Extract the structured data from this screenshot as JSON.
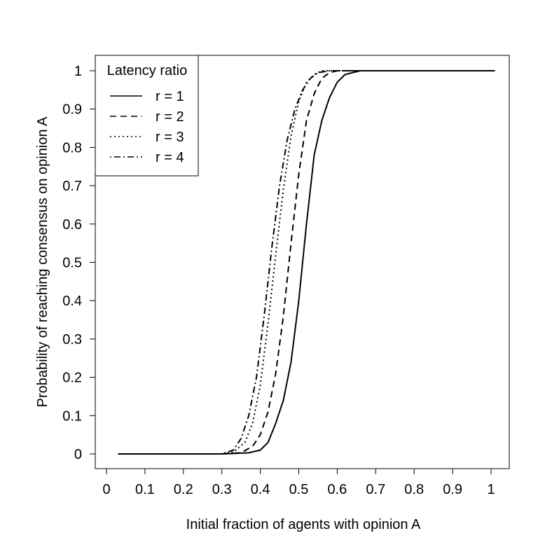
{
  "chart_data": {
    "type": "line",
    "title": "",
    "xlabel": "Initial fraction of agents with opinion A",
    "ylabel": "Probability of reaching consensus on opinion A",
    "xlim": [
      0,
      1
    ],
    "ylim": [
      0,
      1
    ],
    "xticks": [
      "0",
      "0.1",
      "0.2",
      "0.3",
      "0.4",
      "0.5",
      "0.6",
      "0.7",
      "0.8",
      "0.9",
      "1"
    ],
    "yticks": [
      "0",
      "0.1",
      "0.2",
      "0.3",
      "0.4",
      "0.5",
      "0.6",
      "0.7",
      "0.8",
      "0.9",
      "1"
    ],
    "grid": false,
    "legend": {
      "title": "Latency ratio",
      "position": "top-left"
    },
    "series": [
      {
        "name": "r = 1",
        "dash": "solid",
        "x": [
          0.03,
          0.3,
          0.37,
          0.4,
          0.42,
          0.44,
          0.46,
          0.48,
          0.5,
          0.52,
          0.54,
          0.56,
          0.58,
          0.6,
          0.62,
          0.64,
          0.66,
          0.7,
          1.01
        ],
        "y": [
          0,
          0,
          0.003,
          0.01,
          0.03,
          0.08,
          0.14,
          0.24,
          0.4,
          0.6,
          0.78,
          0.87,
          0.93,
          0.97,
          0.99,
          0.995,
          1,
          1,
          1
        ]
      },
      {
        "name": "r = 2",
        "dash": "dashed",
        "x": [
          0.03,
          0.3,
          0.35,
          0.38,
          0.4,
          0.42,
          0.44,
          0.46,
          0.48,
          0.5,
          0.52,
          0.54,
          0.56,
          0.58,
          0.6,
          0.64,
          1.01
        ],
        "y": [
          0,
          0,
          0.003,
          0.02,
          0.05,
          0.11,
          0.21,
          0.36,
          0.55,
          0.73,
          0.87,
          0.94,
          0.98,
          0.995,
          1,
          1,
          1
        ]
      },
      {
        "name": "r = 3",
        "dash": "dotted",
        "x": [
          0.03,
          0.3,
          0.33,
          0.36,
          0.38,
          0.4,
          0.42,
          0.44,
          0.46,
          0.48,
          0.5,
          0.52,
          0.54,
          0.56,
          0.58,
          0.62,
          1.01
        ],
        "y": [
          0,
          0,
          0.005,
          0.03,
          0.08,
          0.18,
          0.34,
          0.52,
          0.69,
          0.83,
          0.92,
          0.97,
          0.99,
          1,
          1,
          1,
          1
        ]
      },
      {
        "name": "r = 4",
        "dash": "dotdash",
        "x": [
          0.03,
          0.3,
          0.33,
          0.35,
          0.37,
          0.39,
          0.41,
          0.43,
          0.45,
          0.47,
          0.49,
          0.51,
          0.53,
          0.55,
          0.58,
          0.62,
          1.01
        ],
        "y": [
          0,
          0,
          0.01,
          0.04,
          0.1,
          0.2,
          0.36,
          0.54,
          0.7,
          0.82,
          0.9,
          0.95,
          0.98,
          0.995,
          1,
          1,
          1
        ]
      }
    ]
  }
}
